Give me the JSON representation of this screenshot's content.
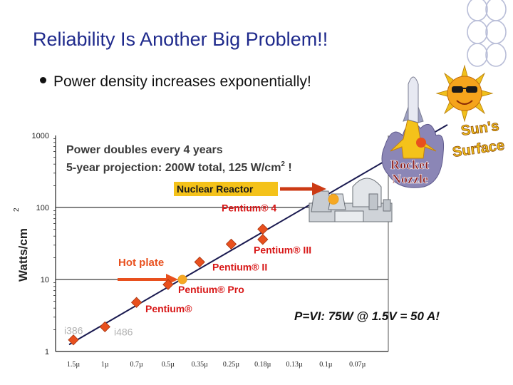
{
  "slide": {
    "title": "Reliability Is Another Big Problem!!",
    "bullet": "Power density increases exponentially!"
  },
  "chart_data": {
    "type": "scatter",
    "y_scale": "log",
    "ylabel": "Watts/cm",
    "ylabel_superscript": "2",
    "y_ticks": [
      1,
      10,
      100,
      1000
    ],
    "ylim": [
      1,
      1000
    ],
    "x_ticks": [
      "1.5µ",
      "1µ",
      "0.7µ",
      "0.5µ",
      "0.35µ",
      "0.25µ",
      "0.18µ",
      "0.13µ",
      "0.1µ",
      "0.07µ"
    ],
    "points": [
      {
        "x": "1.5µ",
        "y": 1.45,
        "label": "i386"
      },
      {
        "x": "1µ",
        "y": 2.2,
        "label": "i486"
      },
      {
        "x": "0.7µ",
        "y": 4.8,
        "label": "Pentium®"
      },
      {
        "x": "0.5µ",
        "y": 8.5,
        "label": "Pentium® Pro"
      },
      {
        "x": "0.35µ",
        "y": 17.5,
        "label": "Pentium® II"
      },
      {
        "x": "0.25µ",
        "y": 31,
        "label": "Pentium® III"
      },
      {
        "x": "0.18µ",
        "y": 36
      },
      {
        "x": "0.18µ",
        "y": 50,
        "label": "Pentium® 4"
      }
    ],
    "reference_points": [
      {
        "label": "Hot plate",
        "y": 10
      },
      {
        "label": "Nuclear Reactor",
        "y": 130
      },
      {
        "label": "Rocket Nozzle",
        "y": 620
      },
      {
        "label": "Sun's Surface"
      }
    ],
    "annotations": {
      "headline_1": "Power doubles every 4 years",
      "headline_2": "5-year projection:  200W total, 125 W/cm",
      "headline_2_sup": "2",
      "headline_2_end": " !",
      "formula": "P=VI:  75W @ 1.5V = 50 A!"
    },
    "colors": {
      "marker": "#e8501e",
      "trend_line": "#1a1a50",
      "label_red": "#d81818",
      "pointer": "#e8501e",
      "point_yellow": "#f6a823",
      "grid": "#3b3b3b",
      "axis": "#222222",
      "text_gray": "#b0b0b0"
    },
    "icons": [
      "nuclear-plant-icon",
      "rocket-flame-icon",
      "sun-with-sunglasses-icon"
    ]
  }
}
